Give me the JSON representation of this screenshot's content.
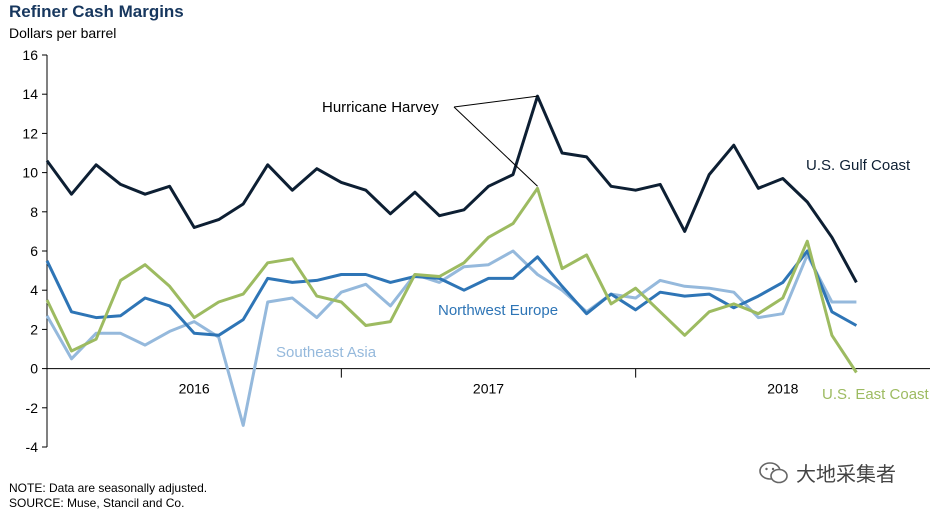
{
  "chart_data": {
    "type": "line",
    "title": "Refiner Cash Margins",
    "ylabel": "Dollars per barrel",
    "ylim": [
      -4,
      16
    ],
    "yticks": [
      -4,
      -2,
      0,
      2,
      4,
      6,
      8,
      10,
      12,
      14,
      16
    ],
    "x_start": 2015.5,
    "x_end": 2018.5,
    "x_step": 0.08333,
    "year_labels": [
      {
        "label": "2016",
        "x": 2016.0
      },
      {
        "label": "2017",
        "x": 2017.0
      },
      {
        "label": "2018",
        "x": 2018.0
      }
    ],
    "year_dividers": [
      2016.5,
      2017.5
    ],
    "grid": false,
    "series": [
      {
        "name": "U.S. Gulf Coast",
        "color": "#0d1f33",
        "values": [
          10.6,
          8.9,
          10.4,
          9.4,
          8.9,
          9.3,
          7.2,
          7.6,
          8.4,
          10.4,
          9.1,
          10.2,
          9.5,
          9.1,
          7.9,
          9.0,
          7.8,
          8.1,
          9.3,
          9.9,
          13.9,
          11.0,
          10.8,
          9.3,
          9.1,
          9.4,
          7.0,
          9.9,
          11.4,
          9.2,
          9.7,
          8.5,
          6.7,
          4.4
        ]
      },
      {
        "name": "Northwest Europe",
        "color": "#2e75b6",
        "values": [
          5.5,
          2.9,
          2.6,
          2.7,
          3.6,
          3.2,
          1.8,
          1.7,
          2.5,
          4.6,
          4.4,
          4.5,
          4.8,
          4.8,
          4.4,
          4.7,
          4.6,
          4.0,
          4.6,
          4.6,
          5.7,
          4.2,
          2.8,
          3.8,
          3.0,
          3.9,
          3.7,
          3.8,
          3.1,
          3.7,
          4.4,
          6.0,
          2.9,
          2.2
        ]
      },
      {
        "name": "Southeast Asia",
        "color": "#95b9dc",
        "values": [
          2.7,
          0.5,
          1.8,
          1.8,
          1.2,
          1.9,
          2.4,
          1.6,
          -2.9,
          3.4,
          3.6,
          2.6,
          3.9,
          4.3,
          3.2,
          4.8,
          4.4,
          5.2,
          5.3,
          6.0,
          4.8,
          4.0,
          2.9,
          3.8,
          3.6,
          4.5,
          4.2,
          4.1,
          3.9,
          2.6,
          2.8,
          5.8,
          3.4,
          3.4
        ]
      },
      {
        "name": "U.S. East Coast",
        "color": "#9dbb61",
        "values": [
          3.5,
          0.9,
          1.5,
          4.5,
          5.3,
          4.2,
          2.6,
          3.4,
          3.8,
          5.4,
          5.6,
          3.7,
          3.4,
          2.2,
          2.4,
          4.8,
          4.7,
          5.4,
          6.7,
          7.4,
          9.2,
          5.1,
          5.8,
          3.3,
          4.1,
          2.9,
          1.7,
          2.9,
          3.3,
          2.8,
          3.6,
          6.5,
          1.7,
          -0.2
        ]
      }
    ],
    "annotation": {
      "text": "Hurricane Harvey",
      "points": [
        {
          "series": 0,
          "index": 20
        },
        {
          "series": 3,
          "index": 20
        }
      ]
    },
    "notes": [
      "NOTE: Data are seasonally adjusted.",
      "SOURCE: Muse, Stancil and Co."
    ]
  },
  "watermark": {
    "text": "大地采集者",
    "icon": "wechat-icon"
  }
}
